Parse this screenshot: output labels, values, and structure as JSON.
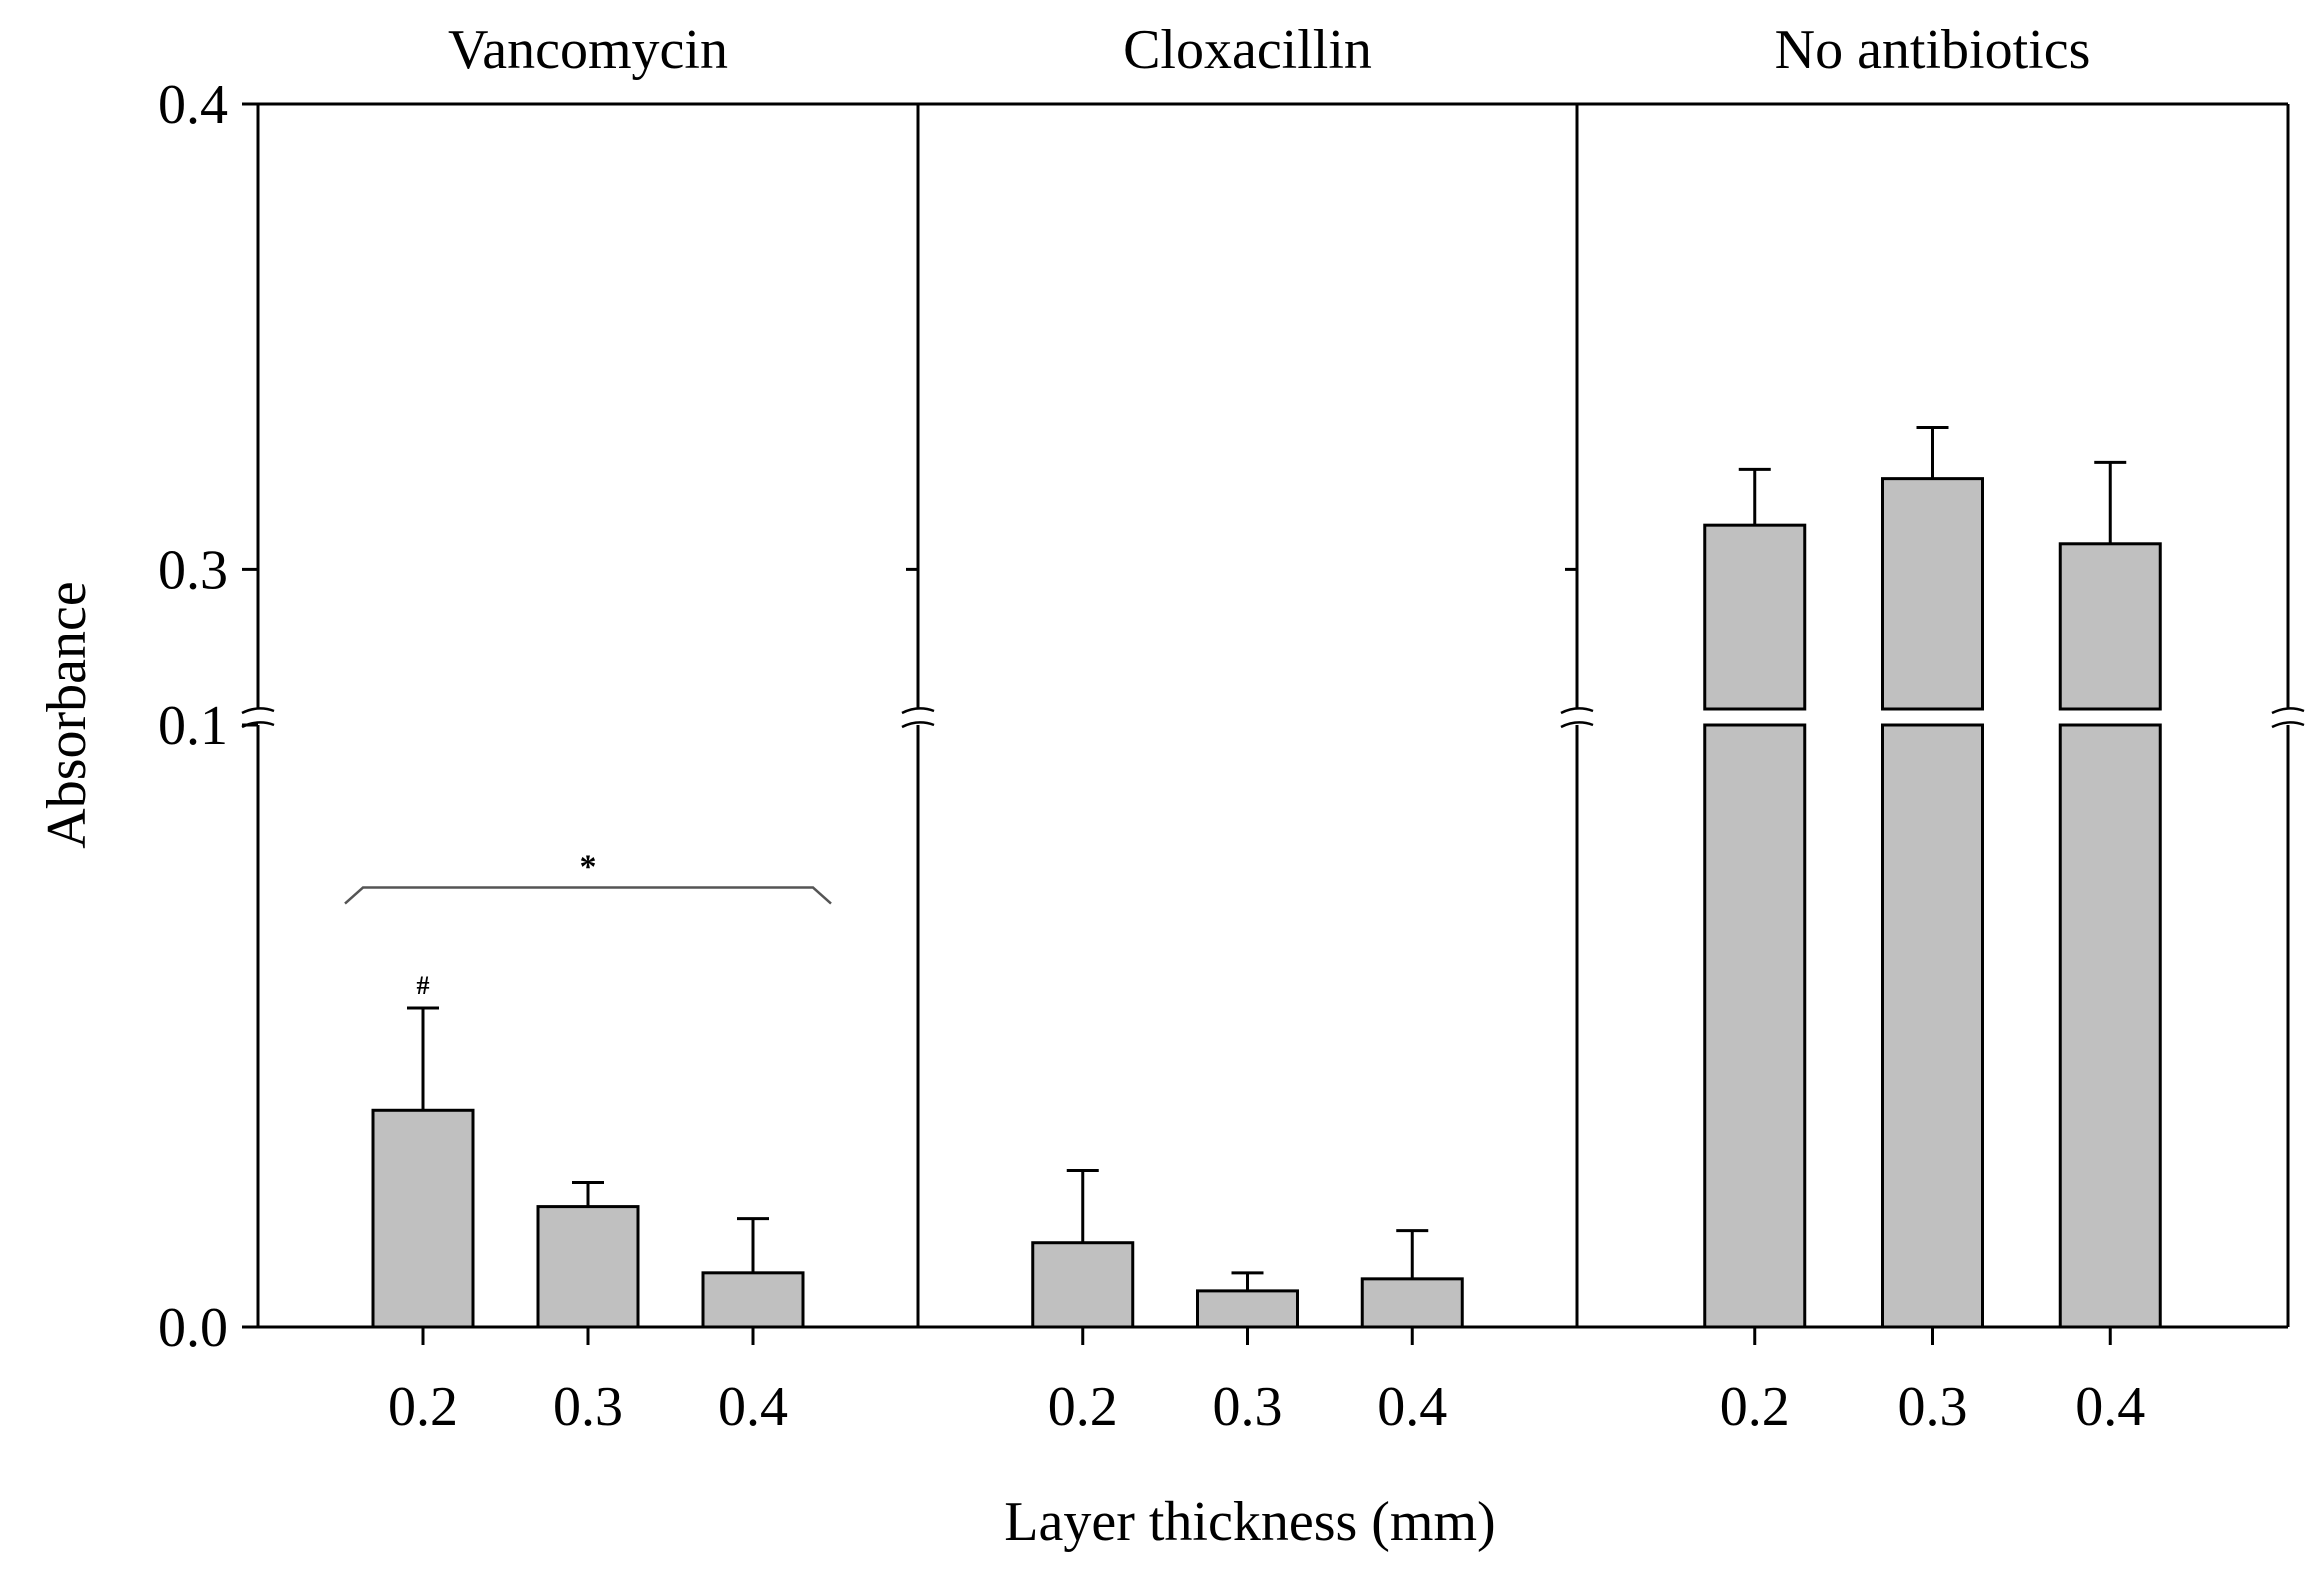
{
  "chart_data": {
    "type": "bar",
    "layout": "three panels side by side sharing one y axis",
    "ylabel": "Absorbance",
    "xlabel": "Layer thickness (mm)",
    "y_axis_break": {
      "from": 0.1,
      "to": 0.27
    },
    "ylim": [
      0,
      0.4
    ],
    "yticks": [
      {
        "value": 0.0,
        "label": "0.0"
      },
      {
        "value": 0.1,
        "label": "0.1"
      },
      {
        "value": 0.3,
        "label": "0.3"
      },
      {
        "value": 0.4,
        "label": "0.4"
      }
    ],
    "categories": [
      "0.2",
      "0.3",
      "0.4"
    ],
    "colors": {
      "bar_fill": "#c0c0c0",
      "outline": "#000000",
      "significance_bracket": "#555555"
    },
    "grid": false,
    "panels": [
      {
        "title": "Vancomycin",
        "values": [
          0.036,
          0.02,
          0.009
        ],
        "errors": [
          0.017,
          0.004,
          0.009
        ],
        "annotations": [
          {
            "text": "#",
            "category": "0.2",
            "position": "above error bar"
          },
          {
            "text": "*",
            "type": "bracket",
            "from": "0.2",
            "to": "0.4",
            "value": 0.073
          }
        ]
      },
      {
        "title": "Cloxacillin",
        "values": [
          0.014,
          0.006,
          0.008
        ],
        "errors": [
          0.012,
          0.003,
          0.008
        ],
        "annotations": []
      },
      {
        "title": "No antibiotics",
        "values": [
          0.3095,
          0.3195,
          0.3055
        ],
        "errors": [
          0.012,
          0.011,
          0.0175
        ],
        "annotations": []
      }
    ]
  }
}
